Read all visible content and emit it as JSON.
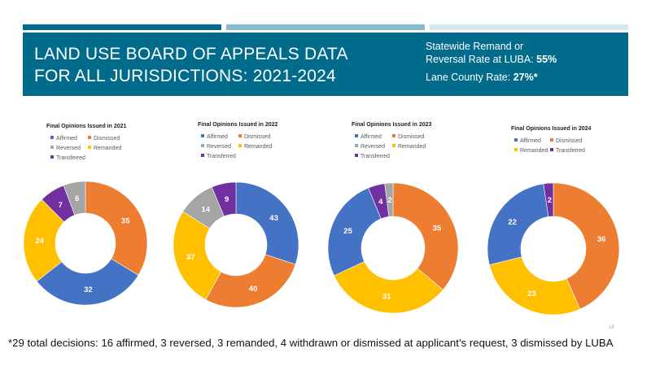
{
  "header": {
    "title_line1": "LAND USE BOARD OF APPEALS DATA",
    "title_line2": "FOR ALL JURISDICTIONS:  2021-2024",
    "statewide_line1": "Statewide Remand or",
    "statewide_line2_prefix": "Reversal Rate at LUBA: ",
    "statewide_rate": "55%",
    "lane_prefix": "Lane County Rate: ",
    "lane_rate": "27%*"
  },
  "colors": {
    "Affirmed": "#4472c4",
    "Dismissed": "#ed7d31",
    "Reversed": "#a5a5a5",
    "Remanded": "#ffc000",
    "Transferred": "#7030a0",
    "header_bg": "#006b8a"
  },
  "chart_data": [
    {
      "type": "pie",
      "title": "Final Opinions Issued in 2021",
      "legend": [
        "Affirmed",
        "Dismissed",
        "Reversed",
        "Remanded",
        "Transferred"
      ],
      "slices": [
        {
          "label": "Dismissed",
          "value": 35
        },
        {
          "label": "Affirmed",
          "value": 32
        },
        {
          "label": "Remanded",
          "value": 24
        },
        {
          "label": "Transferred",
          "value": 7
        },
        {
          "label": "Reversed",
          "value": 6
        }
      ]
    },
    {
      "type": "pie",
      "title": "Final Opinions Issued in 2022",
      "legend": [
        "Affirmed",
        "Dismissed",
        "Reversed",
        "Remanded",
        "Transferred"
      ],
      "slices": [
        {
          "label": "Affirmed",
          "value": 43
        },
        {
          "label": "Dismissed",
          "value": 40
        },
        {
          "label": "Remanded",
          "value": 37
        },
        {
          "label": "Reversed",
          "value": 14
        },
        {
          "label": "Transferred",
          "value": 9
        }
      ]
    },
    {
      "type": "pie",
      "title": "Final Opinions Issued in 2023",
      "legend": [
        "Affirmed",
        "Dismissed",
        "Reversed",
        "Remanded",
        "Transferred"
      ],
      "slices": [
        {
          "label": "Dismissed",
          "value": 35
        },
        {
          "label": "Remanded",
          "value": 31
        },
        {
          "label": "Affirmed",
          "value": 25
        },
        {
          "label": "Transferred",
          "value": 4
        },
        {
          "label": "Reversed",
          "value": 2
        }
      ]
    },
    {
      "type": "pie",
      "title": "Final Opinions Issued in 2024",
      "legend": [
        "Affirmed",
        "Dismissed",
        "Remanded",
        "Transferred"
      ],
      "slices": [
        {
          "label": "Dismissed",
          "value": 36
        },
        {
          "label": "Remanded",
          "value": 23
        },
        {
          "label": "Affirmed",
          "value": 22
        },
        {
          "label": "Transferred",
          "value": 2
        }
      ]
    }
  ],
  "footnote": "*29 total decisions: 16 affirmed, 3 reversed, 3 remanded, 4 withdrawn or dismissed at applicant’s request, 3 dismissed by LUBA",
  "page_number": "16"
}
